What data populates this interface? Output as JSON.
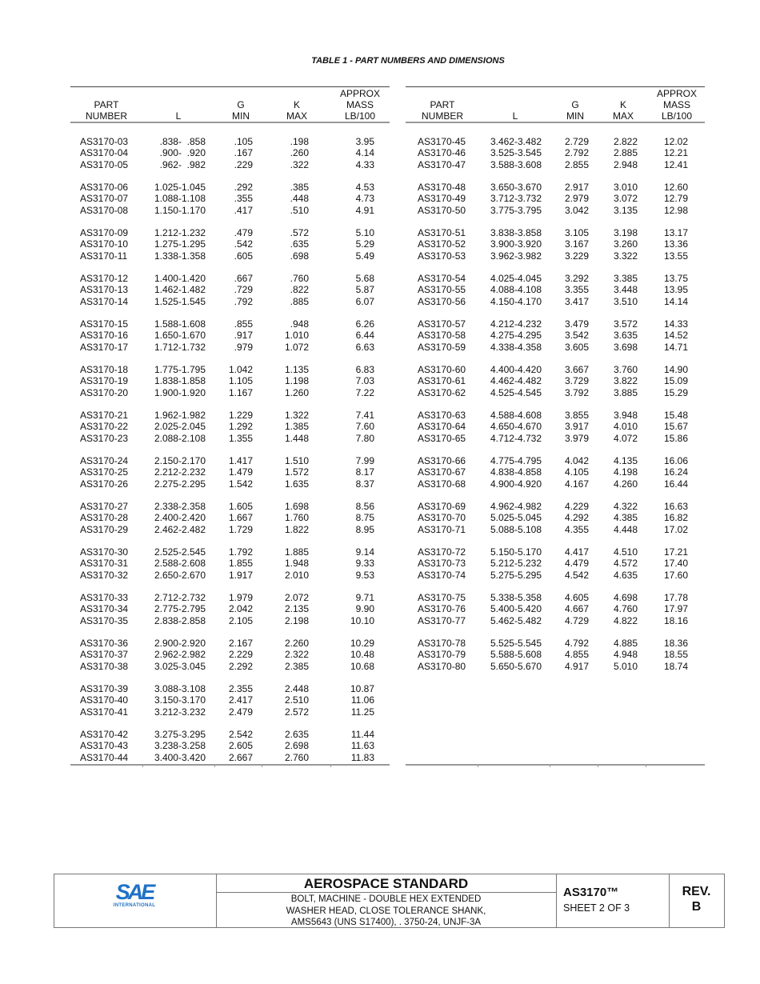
{
  "title": "TABLE 1 - PART NUMBERS AND DIMENSIONS",
  "headers": {
    "part": [
      "PART",
      "NUMBER"
    ],
    "l": [
      "L"
    ],
    "g": [
      "G",
      "MIN"
    ],
    "k": [
      "K",
      "MAX"
    ],
    "mass": [
      "APPROX",
      "MASS",
      "LB/100"
    ]
  },
  "left_rows": [
    [
      "AS3170-03",
      ".838-  .858",
      ".105",
      ".198",
      "3.95"
    ],
    [
      "AS3170-04",
      ".900-  .920",
      ".167",
      ".260",
      "4.14"
    ],
    [
      "AS3170-05",
      ".962-  .982",
      ".229",
      ".322",
      "4.33"
    ],
    [
      "AS3170-06",
      "1.025-1.045",
      ".292",
      ".385",
      "4.53"
    ],
    [
      "AS3170-07",
      "1.088-1.108",
      ".355",
      ".448",
      "4.73"
    ],
    [
      "AS3170-08",
      "1.150-1.170",
      ".417",
      ".510",
      "4.91"
    ],
    [
      "AS3170-09",
      "1.212-1.232",
      ".479",
      ".572",
      "5.10"
    ],
    [
      "AS3170-10",
      "1.275-1.295",
      ".542",
      ".635",
      "5.29"
    ],
    [
      "AS3170-11",
      "1.338-1.358",
      ".605",
      ".698",
      "5.49"
    ],
    [
      "AS3170-12",
      "1.400-1.420",
      ".667",
      ".760",
      "5.68"
    ],
    [
      "AS3170-13",
      "1.462-1.482",
      ".729",
      ".822",
      "5.87"
    ],
    [
      "AS3170-14",
      "1.525-1.545",
      ".792",
      ".885",
      "6.07"
    ],
    [
      "AS3170-15",
      "1.588-1.608",
      ".855",
      ".948",
      "6.26"
    ],
    [
      "AS3170-16",
      "1.650-1.670",
      ".917",
      "1.010",
      "6.44"
    ],
    [
      "AS3170-17",
      "1.712-1.732",
      ".979",
      "1.072",
      "6.63"
    ],
    [
      "AS3170-18",
      "1.775-1.795",
      "1.042",
      "1.135",
      "6.83"
    ],
    [
      "AS3170-19",
      "1.838-1.858",
      "1.105",
      "1.198",
      "7.03"
    ],
    [
      "AS3170-20",
      "1.900-1.920",
      "1.167",
      "1.260",
      "7.22"
    ],
    [
      "AS3170-21",
      "1.962-1.982",
      "1.229",
      "1.322",
      "7.41"
    ],
    [
      "AS3170-22",
      "2.025-2.045",
      "1.292",
      "1.385",
      "7.60"
    ],
    [
      "AS3170-23",
      "2.088-2.108",
      "1.355",
      "1.448",
      "7.80"
    ],
    [
      "AS3170-24",
      "2.150-2.170",
      "1.417",
      "1.510",
      "7.99"
    ],
    [
      "AS3170-25",
      "2.212-2.232",
      "1.479",
      "1.572",
      "8.17"
    ],
    [
      "AS3170-26",
      "2.275-2.295",
      "1.542",
      "1.635",
      "8.37"
    ],
    [
      "AS3170-27",
      "2.338-2.358",
      "1.605",
      "1.698",
      "8.56"
    ],
    [
      "AS3170-28",
      "2.400-2.420",
      "1.667",
      "1.760",
      "8.75"
    ],
    [
      "AS3170-29",
      "2.462-2.482",
      "1.729",
      "1.822",
      "8.95"
    ],
    [
      "AS3170-30",
      "2.525-2.545",
      "1.792",
      "1.885",
      "9.14"
    ],
    [
      "AS3170-31",
      "2.588-2.608",
      "1.855",
      "1.948",
      "9.33"
    ],
    [
      "AS3170-32",
      "2.650-2.670",
      "1.917",
      "2.010",
      "9.53"
    ],
    [
      "AS3170-33",
      "2.712-2.732",
      "1.979",
      "2.072",
      "9.71"
    ],
    [
      "AS3170-34",
      "2.775-2.795",
      "2.042",
      "2.135",
      "9.90"
    ],
    [
      "AS3170-35",
      "2.838-2.858",
      "2.105",
      "2.198",
      "10.10"
    ],
    [
      "AS3170-36",
      "2.900-2.920",
      "2.167",
      "2.260",
      "10.29"
    ],
    [
      "AS3170-37",
      "2.962-2.982",
      "2.229",
      "2.322",
      "10.48"
    ],
    [
      "AS3170-38",
      "3.025-3.045",
      "2.292",
      "2.385",
      "10.68"
    ],
    [
      "AS3170-39",
      "3.088-3.108",
      "2.355",
      "2.448",
      "10.87"
    ],
    [
      "AS3170-40",
      "3.150-3.170",
      "2.417",
      "2.510",
      "11.06"
    ],
    [
      "AS3170-41",
      "3.212-3.232",
      "2.479",
      "2.572",
      "11.25"
    ],
    [
      "AS3170-42",
      "3.275-3.295",
      "2.542",
      "2.635",
      "11.44"
    ],
    [
      "AS3170-43",
      "3.238-3.258",
      "2.605",
      "2.698",
      "11.63"
    ],
    [
      "AS3170-44",
      "3.400-3.420",
      "2.667",
      "2.760",
      "11.83"
    ]
  ],
  "right_rows": [
    [
      "AS3170-45",
      "3.462-3.482",
      "2.729",
      "2.822",
      "12.02"
    ],
    [
      "AS3170-46",
      "3.525-3.545",
      "2.792",
      "2.885",
      "12.21"
    ],
    [
      "AS3170-47",
      "3.588-3.608",
      "2.855",
      "2.948",
      "12.41"
    ],
    [
      "AS3170-48",
      "3.650-3.670",
      "2.917",
      "3.010",
      "12.60"
    ],
    [
      "AS3170-49",
      "3.712-3.732",
      "2.979",
      "3.072",
      "12.79"
    ],
    [
      "AS3170-50",
      "3.775-3.795",
      "3.042",
      "3.135",
      "12.98"
    ],
    [
      "AS3170-51",
      "3.838-3.858",
      "3.105",
      "3.198",
      "13.17"
    ],
    [
      "AS3170-52",
      "3.900-3.920",
      "3.167",
      "3.260",
      "13.36"
    ],
    [
      "AS3170-53",
      "3.962-3.982",
      "3.229",
      "3.322",
      "13.55"
    ],
    [
      "AS3170-54",
      "4.025-4.045",
      "3.292",
      "3.385",
      "13.75"
    ],
    [
      "AS3170-55",
      "4.088-4.108",
      "3.355",
      "3.448",
      "13.95"
    ],
    [
      "AS3170-56",
      "4.150-4.170",
      "3.417",
      "3.510",
      "14.14"
    ],
    [
      "AS3170-57",
      "4.212-4.232",
      "3.479",
      "3.572",
      "14.33"
    ],
    [
      "AS3170-58",
      "4.275-4.295",
      "3.542",
      "3.635",
      "14.52"
    ],
    [
      "AS3170-59",
      "4.338-4.358",
      "3.605",
      "3.698",
      "14.71"
    ],
    [
      "AS3170-60",
      "4.400-4.420",
      "3.667",
      "3.760",
      "14.90"
    ],
    [
      "AS3170-61",
      "4.462-4.482",
      "3.729",
      "3.822",
      "15.09"
    ],
    [
      "AS3170-62",
      "4.525-4.545",
      "3.792",
      "3.885",
      "15.29"
    ],
    [
      "AS3170-63",
      "4.588-4.608",
      "3.855",
      "3.948",
      "15.48"
    ],
    [
      "AS3170-64",
      "4.650-4.670",
      "3.917",
      "4.010",
      "15.67"
    ],
    [
      "AS3170-65",
      "4.712-4.732",
      "3.979",
      "4.072",
      "15.86"
    ],
    [
      "AS3170-66",
      "4.775-4.795",
      "4.042",
      "4.135",
      "16.06"
    ],
    [
      "AS3170-67",
      "4.838-4.858",
      "4.105",
      "4.198",
      "16.24"
    ],
    [
      "AS3170-68",
      "4.900-4.920",
      "4.167",
      "4.260",
      "16.44"
    ],
    [
      "AS3170-69",
      "4.962-4.982",
      "4.229",
      "4.322",
      "16.63"
    ],
    [
      "AS3170-70",
      "5.025-5.045",
      "4.292",
      "4.385",
      "16.82"
    ],
    [
      "AS3170-71",
      "5.088-5.108",
      "4.355",
      "4.448",
      "17.02"
    ],
    [
      "AS3170-72",
      "5.150-5.170",
      "4.417",
      "4.510",
      "17.21"
    ],
    [
      "AS3170-73",
      "5.212-5.232",
      "4.479",
      "4.572",
      "17.40"
    ],
    [
      "AS3170-74",
      "5.275-5.295",
      "4.542",
      "4.635",
      "17.60"
    ],
    [
      "AS3170-75",
      "5.338-5.358",
      "4.605",
      "4.698",
      "17.78"
    ],
    [
      "AS3170-76",
      "5.400-5.420",
      "4.667",
      "4.760",
      "17.97"
    ],
    [
      "AS3170-77",
      "5.462-5.482",
      "4.729",
      "4.822",
      "18.16"
    ],
    [
      "AS3170-78",
      "5.525-5.545",
      "4.792",
      "4.885",
      "18.36"
    ],
    [
      "AS3170-79",
      "5.588-5.608",
      "4.855",
      "4.948",
      "18.55"
    ],
    [
      "AS3170-80",
      "5.650-5.670",
      "4.917",
      "5.010",
      "18.74"
    ]
  ],
  "footer": {
    "logo_text": "SAE",
    "logo_subtext": "INTERNATIONAL",
    "logo_color": "#1f72c6",
    "standard_title": "AEROSPACE STANDARD",
    "description": [
      "BOLT, MACHINE - DOUBLE HEX EXTENDED",
      "WASHER HEAD, CLOSE TOLERANCE SHANK,",
      "AMS5643 (UNS S17400), . 3750-24, UNJF-3A"
    ],
    "doc_number": "AS3170™",
    "sheet": "SHEET 2 OF 3",
    "rev_label": "REV.",
    "rev_value": "B"
  }
}
